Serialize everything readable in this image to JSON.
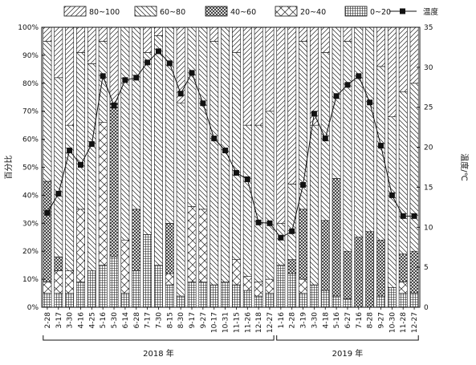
{
  "chart_data": {
    "type": "bar",
    "stacked": "percent",
    "categories": [
      "2-28",
      "3-17",
      "3-30",
      "4-16",
      "4-25",
      "5-16",
      "5-30",
      "6-14",
      "6-28",
      "7-17",
      "7-30",
      "8-15",
      "8-30",
      "9-17",
      "9-27",
      "10-17",
      "10-31",
      "11-15",
      "11-26",
      "12-18",
      "12-27",
      "1-16",
      "2-28",
      "3-19",
      "3-30",
      "4-18",
      "5-16",
      "6-27",
      "7-16",
      "8-28",
      "9-27",
      "10-30",
      "11-28",
      "12-27"
    ],
    "series": [
      {
        "name": "80~100",
        "values": [
          5,
          18,
          35,
          9,
          13,
          5,
          27,
          0,
          0,
          9,
          3,
          0,
          27,
          0,
          0,
          5,
          0,
          9,
          35,
          35,
          30,
          70,
          56,
          5,
          35,
          9,
          0,
          5,
          0,
          0,
          14,
          32,
          23,
          20
        ]
      },
      {
        "name": "60~80",
        "values": [
          50,
          64,
          52,
          56,
          74,
          29,
          0,
          76,
          65,
          65,
          82,
          70,
          69,
          64,
          65,
          87,
          91,
          74,
          54,
          56,
          60,
          15,
          27,
          60,
          57,
          60,
          54,
          75,
          75,
          73,
          62,
          61,
          58,
          60
        ]
      },
      {
        "name": "40~60",
        "values": [
          36,
          5,
          0,
          0,
          0,
          0,
          55,
          0,
          22,
          0,
          0,
          18,
          0,
          0,
          0,
          0,
          0,
          0,
          0,
          0,
          0,
          0,
          5,
          25,
          0,
          25,
          42,
          17,
          25,
          27,
          20,
          0,
          10,
          15
        ]
      },
      {
        "name": "20~40",
        "values": [
          4,
          8,
          8,
          26,
          0,
          51,
          0,
          19,
          0,
          0,
          0,
          4,
          0,
          27,
          26,
          0,
          0,
          9,
          5,
          5,
          5,
          0,
          0,
          5,
          0,
          0,
          0,
          0,
          0,
          0,
          0,
          0,
          4,
          0
        ]
      },
      {
        "name": "0~20",
        "values": [
          5,
          5,
          5,
          9,
          13,
          15,
          18,
          5,
          13,
          26,
          15,
          8,
          4,
          9,
          9,
          8,
          9,
          8,
          6,
          4,
          5,
          15,
          12,
          5,
          8,
          6,
          4,
          3,
          0,
          0,
          4,
          7,
          5,
          5
        ]
      }
    ],
    "temperature": {
      "name": "温度",
      "values": [
        11.8,
        14.2,
        19.6,
        17.8,
        20.4,
        28.9,
        25.2,
        28.4,
        28.7,
        30.6,
        32.0,
        30.5,
        26.7,
        29.3,
        25.5,
        21.1,
        19.6,
        16.8,
        16.0,
        10.6,
        10.5,
        8.7,
        9.5,
        15.3,
        24.2,
        21.1,
        26.4,
        27.8,
        28.9,
        25.6,
        20.2,
        14.0,
        11.4,
        11.4
      ]
    },
    "groups": [
      {
        "label": "2018 年",
        "from": 0,
        "to": 20
      },
      {
        "label": "2019 年",
        "from": 21,
        "to": 33
      }
    ],
    "ylabel": "百分比",
    "y2label": "温度/℃",
    "ylim": [
      0,
      100
    ],
    "y2lim": [
      0,
      35
    ],
    "yticks": [
      "0%",
      "10%",
      "20%",
      "30%",
      "40%",
      "50%",
      "60%",
      "70%",
      "80%",
      "90%",
      "100%"
    ],
    "y2ticks": [
      0,
      5,
      10,
      15,
      20,
      25,
      30,
      35
    ],
    "legend_position": "top"
  }
}
